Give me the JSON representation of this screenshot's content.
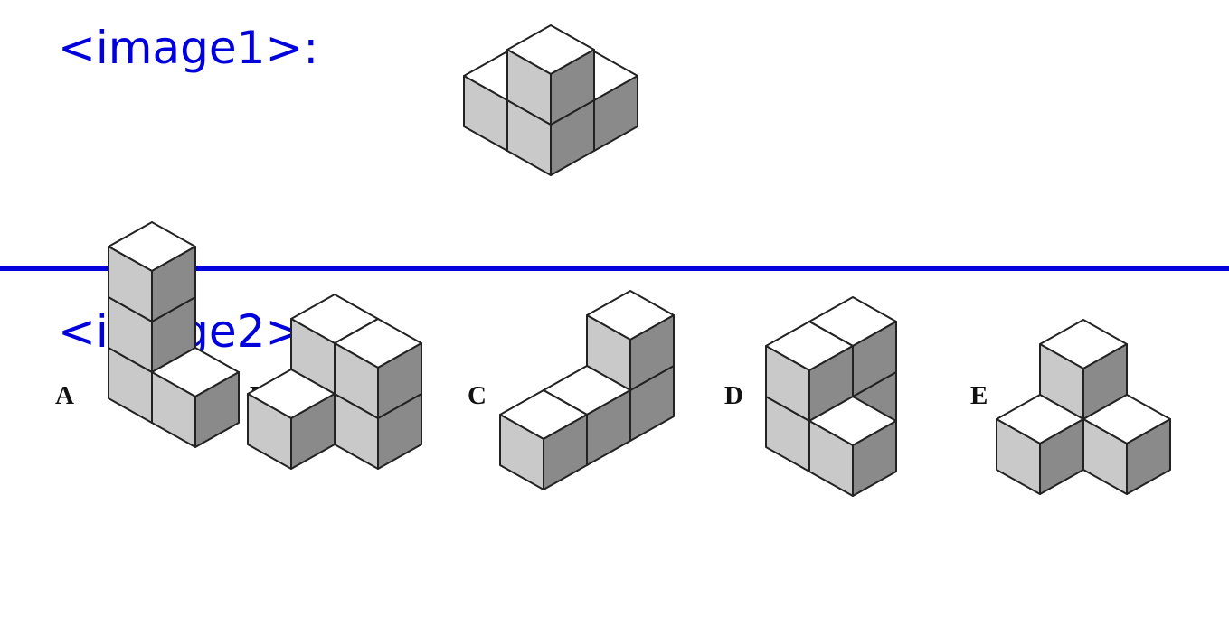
{
  "image1": {
    "label": "<image1>:"
  },
  "image2": {
    "label": "<image2>:",
    "options": [
      "A",
      "B",
      "C",
      "D",
      "E"
    ]
  },
  "colors": {
    "label_text": "#0000dd",
    "divider": "#0000dd",
    "cube_top": "#ffffff",
    "cube_left": "#c9c9c9",
    "cube_right": "#8a8a8a",
    "cube_edge": "#222222"
  }
}
